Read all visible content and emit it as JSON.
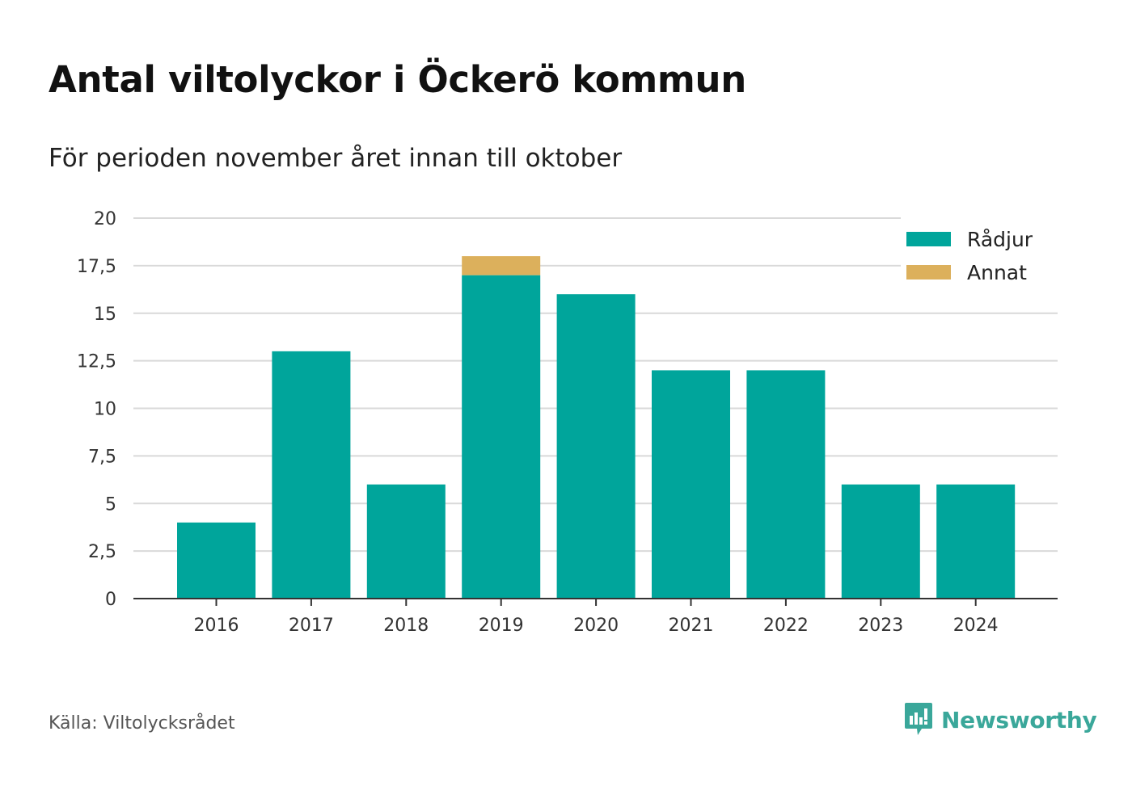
{
  "header": {
    "title": "Antal viltolyckor i Öckerö kommun",
    "subtitle": "För perioden november året innan till oktober"
  },
  "footer": {
    "source": "Källa: Viltolycksrådet",
    "brand": "Newsworthy",
    "brand_icon": "bar-chart-speech-bubble-icon"
  },
  "colors": {
    "radjur": "#00a59b",
    "annat": "#dcb05c",
    "grid": "#d9d9d9",
    "axis": "#333333",
    "brand": "#3aa79a"
  },
  "chart_data": {
    "type": "bar",
    "stacked": true,
    "title": "Antal viltolyckor i Öckerö kommun",
    "subtitle": "För perioden november året innan till oktober",
    "categories": [
      "2016",
      "2017",
      "2018",
      "2019",
      "2020",
      "2021",
      "2022",
      "2023",
      "2024"
    ],
    "series": [
      {
        "name": "Rådjur",
        "color": "#00a59b",
        "values": [
          4,
          13,
          6,
          17,
          16,
          12,
          12,
          6,
          6
        ]
      },
      {
        "name": "Annat",
        "color": "#dcb05c",
        "values": [
          0,
          0,
          0,
          1,
          0,
          0,
          0,
          0,
          0
        ]
      }
    ],
    "ylim": [
      0,
      20
    ],
    "yticks": [
      0,
      2.5,
      5,
      7.5,
      10,
      12.5,
      15,
      17.5,
      20
    ],
    "ytick_labels": [
      "0",
      "2,5",
      "5",
      "7,5",
      "10",
      "12,5",
      "15",
      "17,5",
      "20"
    ],
    "grid": true,
    "legend_position": "top-right"
  }
}
